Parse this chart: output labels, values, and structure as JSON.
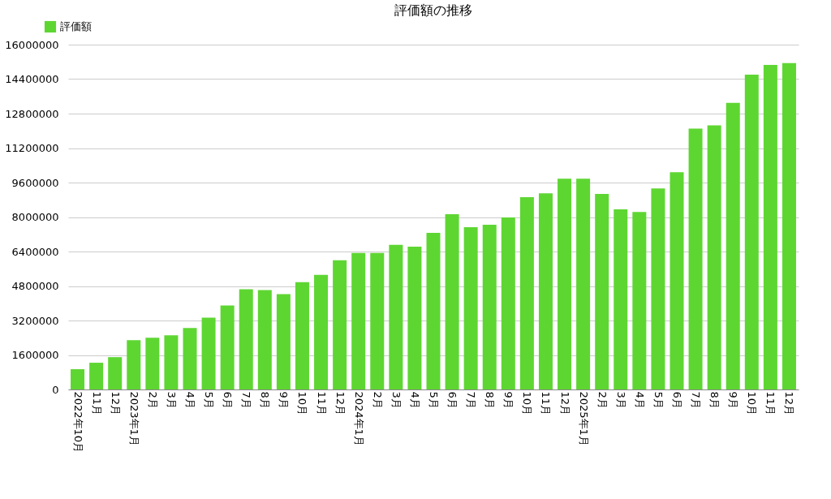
{
  "chart_data": {
    "type": "bar",
    "title": "評価額の推移",
    "categories": [
      "2022年10月",
      "11月",
      "12月",
      "2023年1月",
      "2月",
      "3月",
      "4月",
      "5月",
      "6月",
      "7月",
      "8月",
      "9月",
      "10月",
      "11月",
      "12月",
      "2024年1月",
      "2月",
      "3月",
      "4月",
      "5月",
      "6月",
      "7月",
      "8月",
      "9月",
      "10月",
      "11月",
      "12月",
      "2025年1月",
      "2月",
      "3月",
      "4月",
      "5月",
      "6月",
      "7月",
      "8月",
      "9月",
      "10月",
      "11月",
      "12月"
    ],
    "series": [
      {
        "name": "評価額",
        "color": "#5ed632",
        "values": [
          940000,
          1240000,
          1500000,
          2290000,
          2400000,
          2510000,
          2850000,
          3330000,
          3900000,
          4650000,
          4610000,
          4420000,
          4980000,
          5320000,
          6000000,
          6330000,
          6330000,
          6710000,
          6630000,
          7270000,
          8130000,
          7530000,
          7640000,
          7980000,
          8920000,
          9100000,
          9780000,
          9780000,
          9070000,
          8360000,
          8240000,
          9330000,
          10080000,
          12100000,
          12250000,
          13300000,
          14610000,
          15060000,
          15140000
        ]
      }
    ],
    "ylim": [
      0,
      16000000
    ],
    "yticks": [
      0,
      1600000,
      3200000,
      4800000,
      6400000,
      8000000,
      9600000,
      11200000,
      12800000,
      14400000,
      16000000
    ],
    "grid": "y",
    "legend": "top left"
  }
}
